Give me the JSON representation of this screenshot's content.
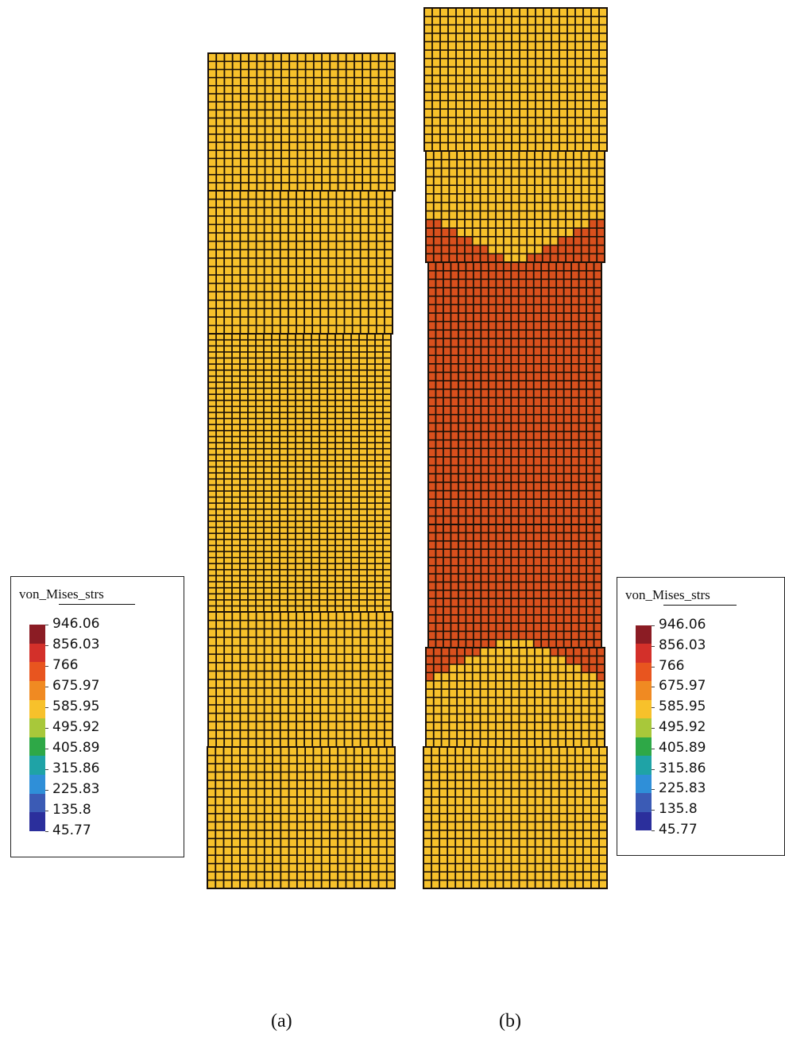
{
  "figure": {
    "legend_title": "von_Mises_strs",
    "legend_values": [
      "946.06",
      "856.03",
      "766",
      "675.97",
      "585.95",
      "495.92",
      "405.89",
      "315.86",
      "225.83",
      "135.8",
      "45.77"
    ],
    "legend_colors": [
      "#8b1c24",
      "#d3302a",
      "#e8551f",
      "#f08a22",
      "#f7c12b",
      "#a8c83a",
      "#2ea847",
      "#1fa3a6",
      "#2f8fd8",
      "#3b5bb5",
      "#2b2f9c"
    ],
    "colors": {
      "yellow_element": "#f7c12b",
      "orange_element": "#d9501d",
      "mesh_line": "#1a1008"
    },
    "panels": [
      {
        "caption": "(a)",
        "stress_state": "uniform"
      },
      {
        "caption": "(b)",
        "stress_state": "necked"
      }
    ]
  }
}
